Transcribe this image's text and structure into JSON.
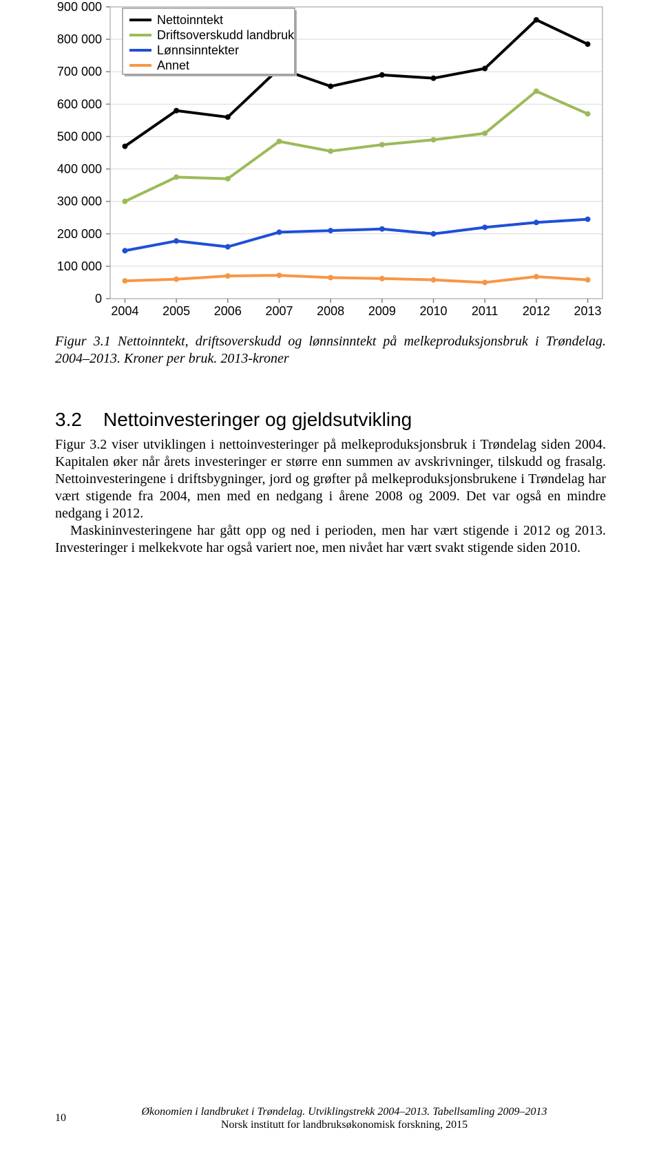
{
  "chart": {
    "type": "line",
    "background_color": "#ffffff",
    "plot_border_color": "#a6a6a6",
    "grid_color": "#d9d9d9",
    "axis_font_family": "Arial",
    "axis_font_size": 18,
    "tick_color": "#808080",
    "ylim": [
      0,
      900000
    ],
    "ytick_step": 100000,
    "y_ticks": [
      "0",
      "100 000",
      "200 000",
      "300 000",
      "400 000",
      "500 000",
      "600 000",
      "700 000",
      "800 000",
      "900 000"
    ],
    "x_categories": [
      "2004",
      "2005",
      "2006",
      "2007",
      "2008",
      "2009",
      "2010",
      "2011",
      "2012",
      "2013"
    ],
    "line_width": 4,
    "marker_radius": 4,
    "legend": {
      "box_stroke": "#808080",
      "box_fill": "#ffffff",
      "shadow_color": "#b0b0b0",
      "font_size": 18,
      "items": [
        "Nettoinntekt",
        "Driftsoverskudd landbruk",
        "Lønnsinntekter",
        "Annet"
      ]
    },
    "series": [
      {
        "name": "Nettoinntekt",
        "color": "#000000",
        "values": [
          470000,
          580000,
          560000,
          710000,
          655000,
          690000,
          680000,
          710000,
          860000,
          785000
        ]
      },
      {
        "name": "Driftsoverskudd landbruk",
        "color": "#9bbb59",
        "values": [
          300000,
          375000,
          370000,
          485000,
          455000,
          475000,
          490000,
          510000,
          640000,
          570000
        ]
      },
      {
        "name": "Lønnsinntekter",
        "color": "#1f4fd8",
        "values": [
          148000,
          178000,
          160000,
          205000,
          210000,
          215000,
          200000,
          220000,
          235000,
          245000
        ]
      },
      {
        "name": "Annet",
        "color": "#f79646",
        "values": [
          55000,
          60000,
          70000,
          72000,
          65000,
          62000,
          58000,
          50000,
          68000,
          58000
        ]
      }
    ]
  },
  "figure_caption": {
    "label": "Figur 3.1",
    "text": "Nettoinntekt, driftsoverskudd og lønnsinntekt på melkeproduksjonsbruk i Trøndelag. 2004–2013. Kroner per bruk. 2013-kroner"
  },
  "section": {
    "number": "3.2",
    "title": "Nettoinvesteringer og gjeldsutvikling"
  },
  "paragraphs": {
    "p1": "Figur 3.2 viser utviklingen i nettoinvesteringer på melkeproduksjonsbruk i Trøndelag siden 2004. Kapitalen øker når årets investeringer er større enn summen av avskrivninger, tilskudd og frasalg. Nettoinvesteringene i driftsbygninger, jord og grøfter på melkeproduksjonsbrukene i Trøndelag har vært stigende fra 2004, men med en nedgang i årene 2008 og 2009. Det var også en mindre nedgang i 2012.",
    "p2": "Maskininvesteringene har gått opp og ned i perioden, men har vært stigende i 2012 og 2013. Investeringer i melkekvote har også variert noe, men nivået har vært svakt stigende siden 2010."
  },
  "footer": {
    "page_number": "10",
    "line1": "Økonomien i landbruket i Trøndelag. Utviklingstrekk 2004–2013. Tabellsamling 2009–2013",
    "line2": "Norsk institutt for landbruksøkonomisk forskning, 2015"
  }
}
